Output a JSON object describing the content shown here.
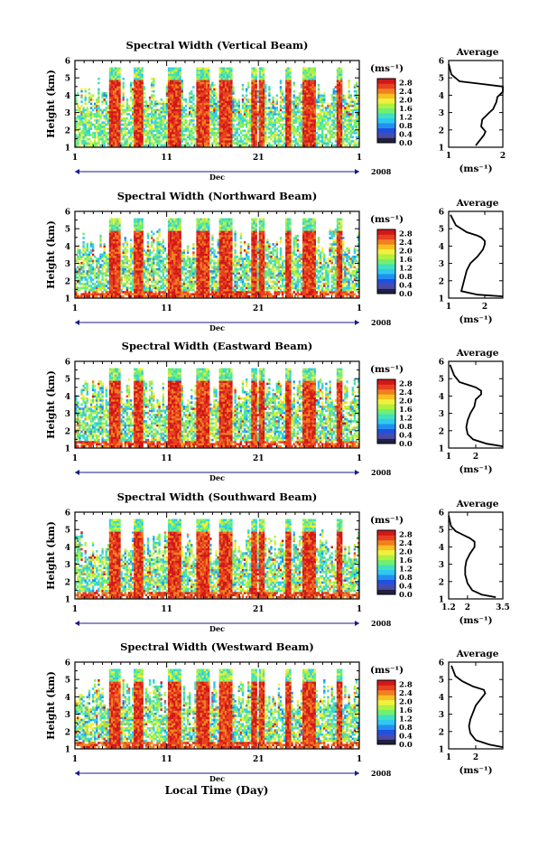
{
  "chart_data": [
    {
      "type": "heatmap",
      "beam": "vertical",
      "title": "Spectral Width (Vertical Beam)",
      "ylabel": "Height (km)",
      "ylim": [
        1,
        6
      ],
      "y_ticks": [
        "1",
        "2",
        "3",
        "4",
        "5",
        "6"
      ],
      "x_ticks": [
        "1",
        "11",
        "21",
        "1"
      ],
      "month_label": "Dec",
      "year_label": "2008",
      "colorbar": {
        "unit": "(ms⁻¹)",
        "ticks": [
          "0.0",
          "0.4",
          "0.8",
          "1.2",
          "1.6",
          "2.0",
          "2.4",
          "2.8"
        ],
        "range": [
          0,
          3.0
        ]
      },
      "average_profile": {
        "title": "Average",
        "xlabel": "(ms⁻¹)",
        "xlim": [
          1,
          2
        ],
        "x_ticks": [
          "1",
          "2"
        ],
        "ylim": [
          1,
          6
        ],
        "y_ticks": [
          "1",
          "2",
          "3",
          "4",
          "5",
          "6"
        ],
        "x": [
          1.5,
          1.55,
          1.6,
          1.65,
          1.68,
          1.6,
          1.62,
          1.75,
          1.82,
          1.85,
          1.88,
          1.9,
          2.0,
          2.0,
          1.6,
          1.2,
          1.05,
          1.0
        ],
        "y": [
          1.1,
          1.3,
          1.5,
          1.7,
          1.9,
          2.2,
          2.6,
          3.0,
          3.2,
          3.4,
          3.6,
          3.9,
          4.2,
          4.5,
          4.65,
          4.8,
          5.2,
          5.8
        ]
      }
    },
    {
      "type": "heatmap",
      "beam": "northward",
      "title": "Spectral Width (Northward Beam)",
      "ylabel": "Height (km)",
      "ylim": [
        1,
        6
      ],
      "y_ticks": [
        "1",
        "2",
        "3",
        "4",
        "5",
        "6"
      ],
      "x_ticks": [
        "1",
        "11",
        "21",
        "1"
      ],
      "month_label": "Dec",
      "year_label": "2008",
      "colorbar": {
        "unit": "(ms⁻¹)",
        "ticks": [
          "0.0",
          "0.4",
          "0.8",
          "1.2",
          "1.6",
          "2.0",
          "2.4",
          "2.8"
        ],
        "range": [
          0,
          3.0
        ]
      },
      "average_profile": {
        "title": "Average",
        "xlabel": "(ms⁻¹)",
        "xlim": [
          1,
          2.5
        ],
        "x_ticks": [
          "1",
          "2"
        ],
        "ylim": [
          1,
          6
        ],
        "y_ticks": [
          "1",
          "2",
          "3",
          "4",
          "5",
          "6"
        ],
        "x": [
          2.5,
          1.8,
          1.35,
          1.4,
          1.45,
          1.5,
          1.6,
          1.8,
          1.95,
          2.0,
          2.0,
          1.9,
          1.8,
          1.5,
          1.2,
          1.05
        ],
        "y": [
          1.1,
          1.2,
          1.4,
          1.8,
          2.2,
          2.6,
          3.0,
          3.4,
          3.8,
          4.1,
          4.3,
          4.5,
          4.6,
          4.8,
          5.2,
          5.8
        ]
      }
    },
    {
      "type": "heatmap",
      "beam": "eastward",
      "title": "Spectral Width (Eastward Beam)",
      "ylabel": "Height (km)",
      "ylim": [
        1,
        6
      ],
      "y_ticks": [
        "1",
        "2",
        "3",
        "4",
        "5",
        "6"
      ],
      "x_ticks": [
        "1",
        "11",
        "21",
        "1"
      ],
      "month_label": "Dec",
      "year_label": "2008",
      "colorbar": {
        "unit": "(ms⁻¹)",
        "ticks": [
          "0.0",
          "0.4",
          "0.8",
          "1.2",
          "1.6",
          "2.0",
          "2.4",
          "2.8"
        ],
        "range": [
          0,
          3.0
        ]
      },
      "average_profile": {
        "title": "Average",
        "xlabel": "(ms⁻¹)",
        "xlim": [
          1,
          3
        ],
        "x_ticks": [
          "1",
          "2"
        ],
        "ylim": [
          1,
          6
        ],
        "y_ticks": [
          "1",
          "2",
          "3",
          "4",
          "5",
          "6"
        ],
        "x": [
          3.0,
          2.4,
          1.9,
          1.7,
          1.65,
          1.7,
          1.8,
          1.95,
          2.0,
          2.2,
          2.2,
          2.0,
          1.7,
          1.4,
          1.2,
          1.05
        ],
        "y": [
          1.1,
          1.25,
          1.5,
          1.8,
          2.2,
          2.6,
          3.0,
          3.4,
          3.8,
          4.1,
          4.3,
          4.5,
          4.65,
          4.8,
          5.2,
          5.8
        ]
      }
    },
    {
      "type": "heatmap",
      "beam": "southward",
      "title": "Spectral Width (Southward Beam)",
      "ylabel": "Height (km)",
      "ylim": [
        1,
        6
      ],
      "y_ticks": [
        "1",
        "2",
        "3",
        "4",
        "5",
        "6"
      ],
      "x_ticks": [
        "1",
        "11",
        "21",
        "1"
      ],
      "month_label": "Dec",
      "year_label": "2008",
      "colorbar": {
        "unit": "(ms⁻¹)",
        "ticks": [
          "0.0",
          "0.4",
          "0.8",
          "1.2",
          "1.6",
          "2.0",
          "2.4",
          "2.8"
        ],
        "range": [
          0,
          3.0
        ]
      },
      "average_profile": {
        "title": "Average",
        "xlabel": "(ms⁻¹)",
        "xlim": [
          1.2,
          3.5
        ],
        "x_ticks": [
          "1.2",
          "2",
          "3.5"
        ],
        "ylim": [
          1,
          6
        ],
        "y_ticks": [
          "1",
          "2",
          "3",
          "4",
          "5",
          "6"
        ],
        "x": [
          3.2,
          2.6,
          2.2,
          2.0,
          1.9,
          1.9,
          1.95,
          2.1,
          2.3,
          2.3,
          2.1,
          1.8,
          1.5,
          1.3,
          1.2
        ],
        "y": [
          1.1,
          1.25,
          1.5,
          1.9,
          2.4,
          2.8,
          3.2,
          3.6,
          4.0,
          4.3,
          4.5,
          4.7,
          4.9,
          5.2,
          5.8
        ]
      }
    },
    {
      "type": "heatmap",
      "beam": "westward",
      "title": "Spectral Width (Westward Beam)",
      "ylabel": "Height (km)",
      "ylim": [
        1,
        6
      ],
      "y_ticks": [
        "1",
        "2",
        "3",
        "4",
        "5",
        "6"
      ],
      "x_ticks": [
        "1",
        "11",
        "21",
        "1"
      ],
      "month_label": "Dec",
      "year_label": "2008",
      "colorbar": {
        "unit": "(ms⁻¹)",
        "ticks": [
          "0.0",
          "0.4",
          "0.8",
          "1.2",
          "1.6",
          "2.0",
          "2.4",
          "2.8"
        ],
        "range": [
          0,
          3.0
        ]
      },
      "average_profile": {
        "title": "Average",
        "xlabel": "(ms⁻¹)",
        "xlim": [
          1,
          3
        ],
        "x_ticks": [
          "1",
          "2"
        ],
        "ylim": [
          1,
          6
        ],
        "y_ticks": [
          "1",
          "2",
          "3",
          "4",
          "5",
          "6"
        ],
        "x": [
          3.0,
          2.5,
          2.0,
          1.8,
          1.75,
          1.8,
          1.9,
          2.0,
          2.2,
          2.35,
          2.3,
          1.9,
          1.5,
          1.25,
          1.1
        ],
        "y": [
          1.1,
          1.25,
          1.5,
          1.9,
          2.3,
          2.7,
          3.1,
          3.5,
          3.9,
          4.2,
          4.4,
          4.6,
          4.9,
          5.2,
          5.8
        ]
      }
    }
  ],
  "x_axis_label": "Local Time (Day)",
  "colors": {
    "colormap": [
      "#202040",
      "#4a4aa8",
      "#2050e0",
      "#2090f0",
      "#30c8f0",
      "#40e0c0",
      "#70f070",
      "#b0f040",
      "#f0f040",
      "#f8c020",
      "#f08020",
      "#e84020",
      "#d01818"
    ]
  }
}
